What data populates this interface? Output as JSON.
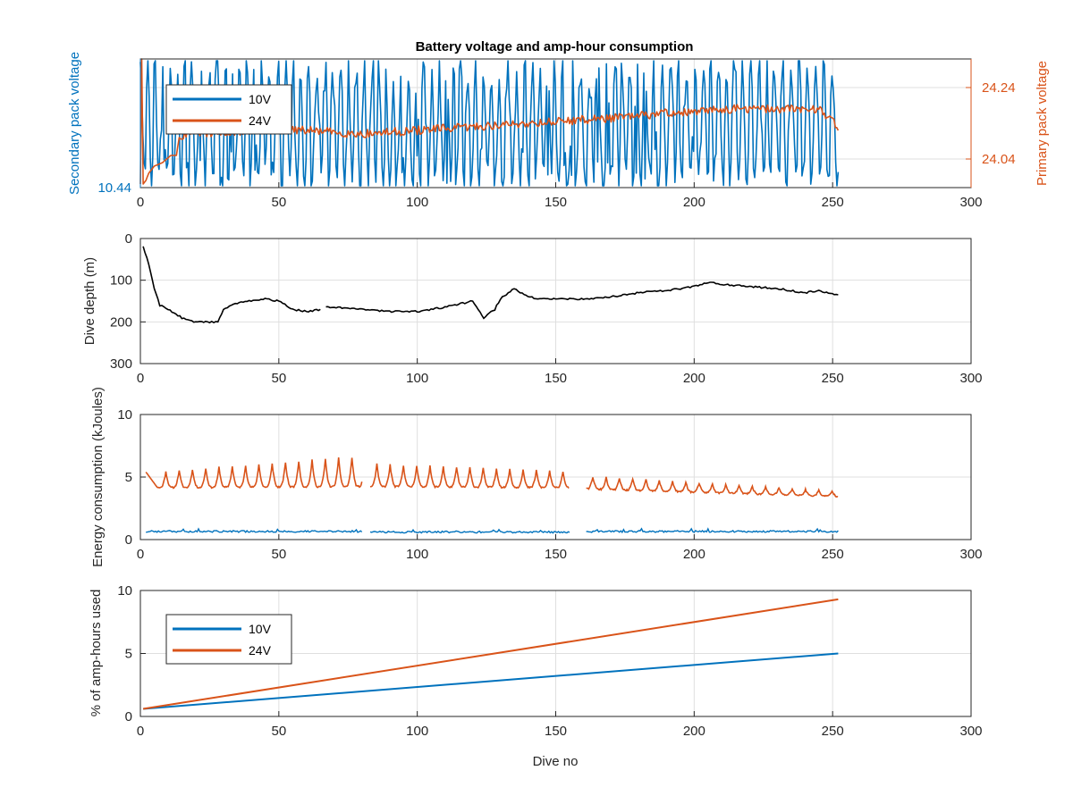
{
  "figure": {
    "title": "Battery voltage and amp-hour consumption",
    "colors": {
      "series_10v": "#0072BD",
      "series_24v": "#D95319",
      "depth": "#000000",
      "axis": "#262626",
      "grid": "#dfdfdf"
    }
  },
  "chart_data": [
    {
      "id": "voltage",
      "type": "line",
      "title": "Battery voltage and amp-hour consumption",
      "xlabel": "",
      "ylabel_left": "Secondary pack voltage",
      "ylabel_right": "Primary pack voltage",
      "xlim": [
        0,
        300
      ],
      "xticks": [
        0,
        50,
        100,
        150,
        200,
        250,
        300
      ],
      "yticks_left": [
        10.44
      ],
      "ylim_right": [
        23.96,
        24.32
      ],
      "yticks_right": [
        24.04,
        24.24
      ],
      "grid": true,
      "legend": {
        "position": "top-left",
        "entries": [
          "10V",
          "24V"
        ]
      },
      "series": [
        {
          "name": "10V",
          "axis": "left",
          "color": "#0072BD",
          "pattern": "noisy",
          "x_range": [
            0,
            252
          ],
          "band": [
            0.0,
            1.0
          ],
          "seed": 7
        },
        {
          "name": "24V",
          "axis": "right",
          "color": "#D95319",
          "x": [
            0,
            0.5,
            1,
            2,
            3,
            5,
            8,
            11,
            13,
            14,
            18,
            25,
            40,
            60,
            80,
            100,
            120,
            140,
            160,
            180,
            190,
            200,
            210,
            220,
            230,
            245,
            250,
            252
          ],
          "y": [
            23.97,
            24.32,
            23.97,
            23.98,
            24.0,
            24.02,
            24.03,
            24.05,
            24.05,
            24.1,
            24.12,
            24.11,
            24.12,
            24.12,
            24.11,
            24.12,
            24.13,
            24.14,
            24.15,
            24.16,
            24.17,
            24.17,
            24.18,
            24.18,
            24.18,
            24.18,
            24.15,
            24.12
          ],
          "noise": 0.012
        }
      ]
    },
    {
      "id": "depth",
      "type": "line",
      "ylabel": "Dive depth (m)",
      "xlim": [
        0,
        300
      ],
      "ylim": [
        0,
        300
      ],
      "y_reversed": true,
      "xticks": [
        0,
        50,
        100,
        150,
        200,
        250,
        300
      ],
      "yticks": [
        0,
        100,
        200,
        300
      ],
      "grid": true,
      "series": [
        {
          "name": "Dive depth",
          "color": "#000000",
          "segments": [
            {
              "x": [
                1,
                3,
                5,
                7,
                10,
                15,
                20,
                25,
                28,
                30,
                35,
                40,
                45,
                50,
                55,
                60,
                65
              ],
              "y": [
                20,
                60,
                120,
                160,
                170,
                190,
                200,
                200,
                200,
                170,
                155,
                150,
                145,
                150,
                170,
                175,
                170
              ]
            },
            {
              "x": [
                67,
                70,
                80,
                90,
                100,
                110,
                120,
                124,
                128,
                130,
                135,
                140,
                145,
                150,
                160,
                170,
                180,
                190,
                200,
                205,
                210,
                220,
                230,
                235,
                240,
                245,
                252
              ],
              "y": [
                165,
                165,
                170,
                175,
                175,
                165,
                150,
                190,
                170,
                145,
                120,
                140,
                145,
                145,
                145,
                140,
                130,
                125,
                115,
                105,
                110,
                115,
                120,
                125,
                130,
                125,
                135
              ]
            }
          ]
        }
      ]
    },
    {
      "id": "energy",
      "type": "line",
      "ylabel": "Energy consumption (kJoules)",
      "xlim": [
        0,
        300
      ],
      "ylim": [
        0,
        10
      ],
      "xticks": [
        0,
        50,
        100,
        150,
        200,
        250,
        300
      ],
      "yticks": [
        0,
        5,
        10
      ],
      "grid": true,
      "series": [
        {
          "name": "24V",
          "color": "#D95319",
          "pattern": "spiky",
          "period": 4.8,
          "segments": [
            {
              "x0": 2,
              "x1": 80,
              "base": [
                4.4,
                4.5
              ],
              "peak": [
                5.6,
                6.9
              ]
            },
            {
              "x0": 83,
              "x1": 155,
              "base": [
                4.5,
                4.4
              ],
              "peak": [
                6.3,
                5.7
              ]
            },
            {
              "x0": 161,
              "x1": 252,
              "base": [
                4.3,
                3.7
              ],
              "peak": [
                5.3,
                4.1
              ]
            }
          ]
        },
        {
          "name": "10V",
          "color": "#0072BD",
          "pattern": "flat-noisy",
          "segments": [
            {
              "x0": 2,
              "x1": 80,
              "level": 0.65
            },
            {
              "x0": 83,
              "x1": 155,
              "level": 0.6
            },
            {
              "x0": 161,
              "x1": 252,
              "level": 0.65
            }
          ]
        }
      ]
    },
    {
      "id": "amphours",
      "type": "line",
      "xlabel": "Dive no",
      "ylabel": "% of amp-hours used",
      "xlim": [
        0,
        300
      ],
      "ylim": [
        0,
        10
      ],
      "xticks": [
        0,
        50,
        100,
        150,
        200,
        250,
        300
      ],
      "yticks": [
        0,
        5,
        10
      ],
      "grid": true,
      "legend": {
        "position": "top-left",
        "entries": [
          "10V",
          "24V"
        ]
      },
      "series": [
        {
          "name": "10V",
          "color": "#0072BD",
          "x": [
            1,
            252
          ],
          "y": [
            0.6,
            5.0
          ]
        },
        {
          "name": "24V",
          "color": "#D95319",
          "x": [
            1,
            252
          ],
          "y": [
            0.6,
            9.3
          ]
        }
      ]
    }
  ]
}
